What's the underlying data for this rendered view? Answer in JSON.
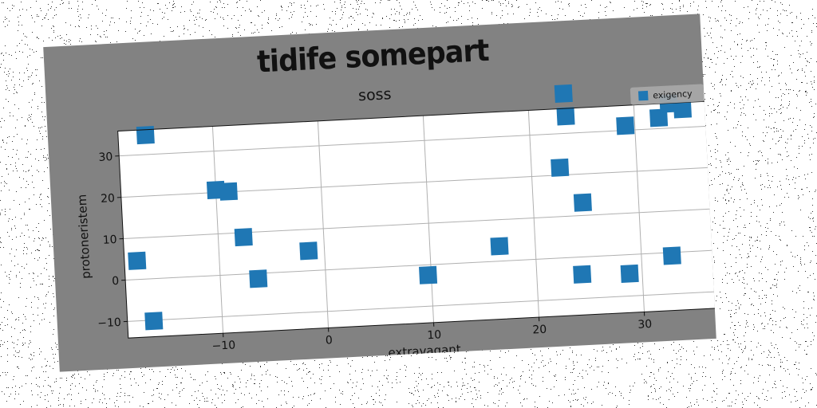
{
  "chart_data": {
    "type": "scatter",
    "title": "tidife somepart",
    "subtitle": "soss",
    "xlabel": "extravagant",
    "ylabel": "protoneristem",
    "xlim": [
      -19,
      37
    ],
    "ylim": [
      -14,
      36
    ],
    "xticks": [
      -10,
      0,
      10,
      20,
      30
    ],
    "yticks": [
      -10,
      0,
      10,
      20,
      30
    ],
    "xtick_labels": [
      "−10",
      "0",
      "10",
      "20",
      "30"
    ],
    "ytick_labels": [
      "−10",
      "0",
      "10",
      "20",
      "30"
    ],
    "grid": true,
    "legend_position": "top-right",
    "series": [
      {
        "name": "exigency",
        "color": "#1f77b4",
        "marker": "square",
        "points": [
          {
            "x": -17.8,
            "y": 4.5
          },
          {
            "x": -16.4,
            "y": 34.7
          },
          {
            "x": -16.5,
            "y": -10.2
          },
          {
            "x": -10.0,
            "y": 20.6
          },
          {
            "x": -8.8,
            "y": 20.1
          },
          {
            "x": -7.6,
            "y": 8.9
          },
          {
            "x": -6.4,
            "y": -1.3
          },
          {
            "x": -1.5,
            "y": 4.8
          },
          {
            "x": 9.7,
            "y": -2.5
          },
          {
            "x": 16.6,
            "y": 3.6
          },
          {
            "x": 22.7,
            "y": 21.8
          },
          {
            "x": 23.4,
            "y": 39.6
          },
          {
            "x": 23.5,
            "y": 34.1
          },
          {
            "x": 24.7,
            "y": 13.1
          },
          {
            "x": 24.3,
            "y": -4.2
          },
          {
            "x": 28.8,
            "y": -4.6
          },
          {
            "x": 29.1,
            "y": 31.1
          },
          {
            "x": 32.3,
            "y": 32.6
          },
          {
            "x": 33.3,
            "y": 35.9
          },
          {
            "x": 34.6,
            "y": 34.4
          },
          {
            "x": 32.9,
            "y": -0.8
          }
        ]
      }
    ]
  }
}
